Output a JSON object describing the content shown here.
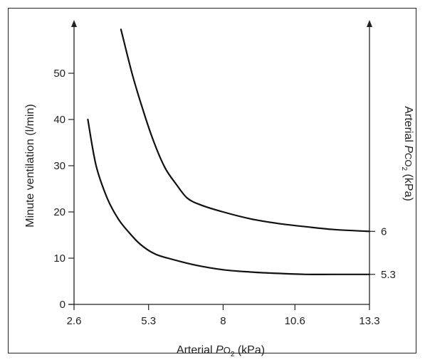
{
  "chart_data": {
    "type": "line",
    "title": "",
    "xlabel": {
      "prefix": "Arterial ",
      "symbol": "P",
      "sub": "O",
      "subscript": "2",
      "unit": " (kPa)"
    },
    "ylabel": "Minute ventilation (l/min)",
    "y2label": {
      "prefix": "Arterial ",
      "symbol": "P",
      "sub": "CO",
      "subscript": "2",
      "unit": " (kPa)"
    },
    "xlim": [
      2.6,
      13.3
    ],
    "ylim": [
      0,
      60
    ],
    "x_ticks": [
      2.6,
      5.3,
      8,
      10.6,
      13.3
    ],
    "x_tick_labels": [
      "2.6",
      "5.3",
      "8",
      "10.6",
      "13.3"
    ],
    "y_ticks": [
      0,
      10,
      20,
      30,
      40,
      50
    ],
    "y_tick_labels": [
      "0",
      "10",
      "20",
      "30",
      "40",
      "50"
    ],
    "grid": false,
    "series": [
      {
        "name": "6",
        "x": [
          4.3,
          4.7,
          5.1,
          5.5,
          5.9,
          6.3,
          6.7,
          7.2,
          8.0,
          9.0,
          10.0,
          11.0,
          12.0,
          13.3
        ],
        "y": [
          59.5,
          50.0,
          42.0,
          35.0,
          29.5,
          26.0,
          23.0,
          21.5,
          20.0,
          18.5,
          17.5,
          16.8,
          16.2,
          15.8
        ]
      },
      {
        "name": "5.3",
        "x": [
          3.1,
          3.4,
          3.8,
          4.2,
          4.6,
          5.0,
          5.5,
          6.0,
          7.0,
          8.0,
          9.0,
          10.0,
          11.0,
          12.0,
          13.3
        ],
        "y": [
          40.0,
          30.0,
          23.0,
          18.5,
          15.5,
          13.0,
          11.0,
          10.0,
          8.5,
          7.5,
          7.0,
          6.7,
          6.5,
          6.5,
          6.5
        ]
      }
    ],
    "right_axis_labels": [
      "6",
      "5.3"
    ]
  }
}
